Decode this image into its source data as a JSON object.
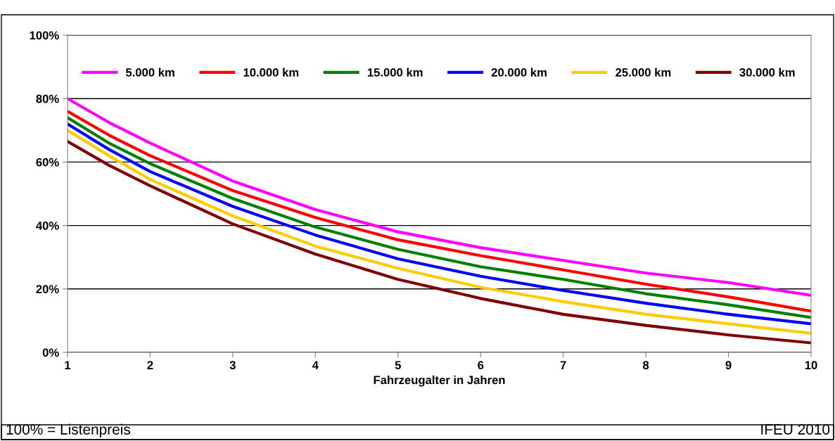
{
  "chart_data": {
    "type": "line",
    "xlabel": "Fahrzeugalter in Jahren",
    "x": [
      1,
      1.5,
      2,
      3,
      4,
      5,
      6,
      7,
      8,
      9,
      10
    ],
    "series": [
      {
        "name": "5.000 km",
        "color": "#ff00ff",
        "values": [
          80,
          72.5,
          66,
          54,
          45,
          38,
          33,
          29,
          25,
          22,
          18
        ]
      },
      {
        "name": "10.000 km",
        "color": "#ff0000",
        "values": [
          76,
          68.5,
          62,
          51,
          42.5,
          35.5,
          30.5,
          26,
          21.5,
          17.5,
          13
        ]
      },
      {
        "name": "15.000 km",
        "color": "#008000",
        "values": [
          74,
          66,
          59.5,
          48.5,
          39.5,
          32.5,
          27,
          23,
          18.5,
          15,
          11
        ]
      },
      {
        "name": "20.000 km",
        "color": "#0000ff",
        "values": [
          72,
          64,
          57,
          46,
          37,
          29.5,
          24,
          19.5,
          15.5,
          12,
          9
        ]
      },
      {
        "name": "25.000 km",
        "color": "#ffcc00",
        "values": [
          70,
          62,
          54.5,
          43,
          33.5,
          26.5,
          20.5,
          16,
          12,
          9,
          6
        ]
      },
      {
        "name": "30.000 km",
        "color": "#800000",
        "values": [
          66.5,
          59,
          52.5,
          40.5,
          31,
          23,
          17,
          12,
          8.5,
          5.5,
          3
        ]
      }
    ],
    "xlim": [
      1,
      10
    ],
    "xticks": [
      1,
      2,
      3,
      4,
      5,
      6,
      7,
      8,
      9,
      10
    ],
    "ylim": [
      0,
      100
    ],
    "yticks": [
      {
        "value": 0,
        "label": "0%"
      },
      {
        "value": 20,
        "label": "20%"
      },
      {
        "value": 40,
        "label": "40%"
      },
      {
        "value": 60,
        "label": "60%"
      },
      {
        "value": 80,
        "label": "80%"
      },
      {
        "value": 100,
        "label": "100%"
      }
    ],
    "grid": "y",
    "legend": "top",
    "marker": "none",
    "line_style": "solid",
    "annotations": [
      "100% = Listenpreis",
      "IFEU 2010"
    ]
  }
}
